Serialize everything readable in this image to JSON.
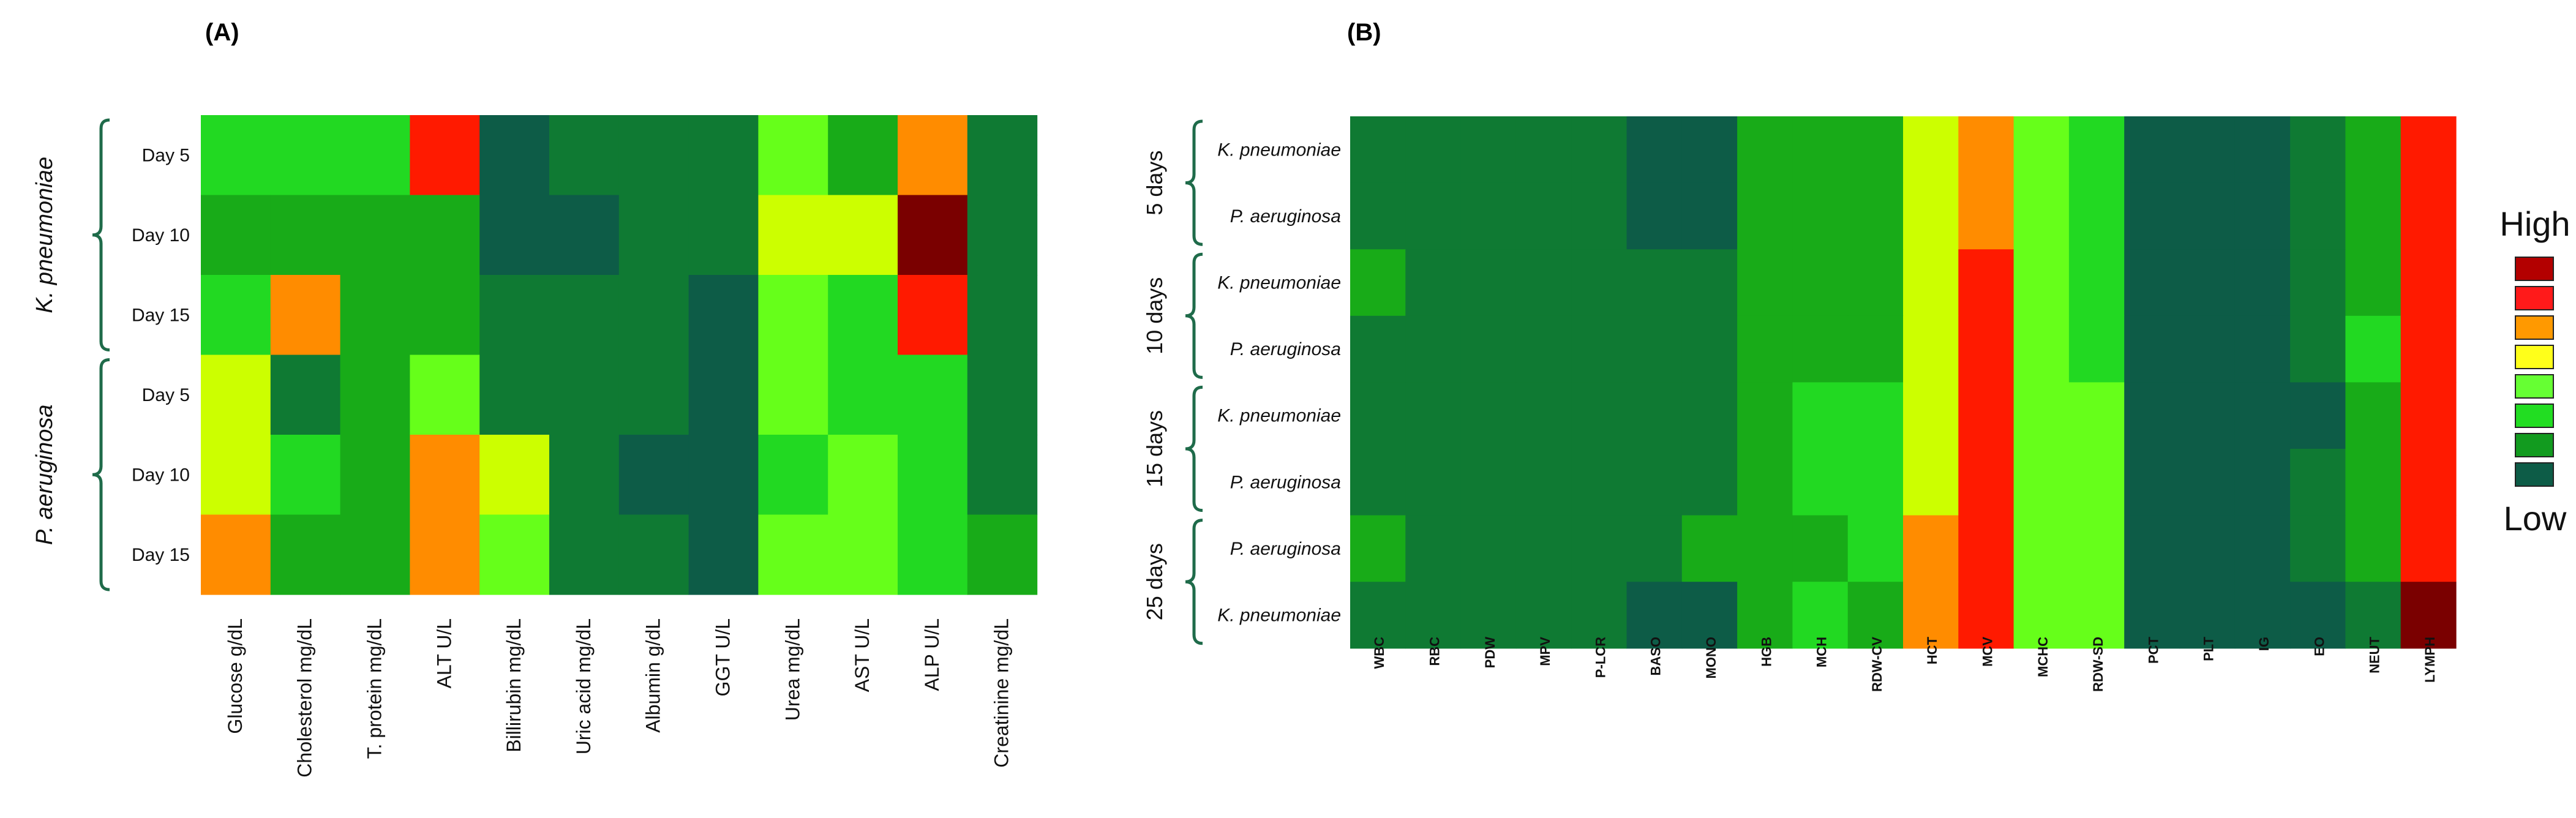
{
  "chart_data": [
    {
      "type": "heatmap",
      "panel_label": "(A)",
      "rows": [
        "Day 5",
        "Day 10",
        "Day 15",
        "Day 5",
        "Day 10",
        "Day 15"
      ],
      "groups": [
        {
          "name": "K. pneumoniae",
          "rows": [
            0,
            1,
            2
          ]
        },
        {
          "name": "P. aeruginosa",
          "rows": [
            3,
            4,
            5
          ]
        }
      ],
      "columns": [
        "Glucose g/dL",
        "Cholesterol mg/dL",
        "T. protein mg/dL",
        "ALT U/L",
        "Billirubin mg/dL",
        "Uric acid mg/dL",
        "Albumin g/dL",
        "GGT U/L",
        "Urea mg/dL",
        "AST U/L",
        "ALP U/L",
        "Creatinine mg/dL"
      ],
      "values": [
        [
          3,
          3,
          3,
          7,
          0,
          1,
          1,
          1,
          4,
          2,
          6,
          1
        ],
        [
          2,
          2,
          2,
          2,
          0,
          0,
          1,
          1,
          5,
          5,
          8,
          1
        ],
        [
          3,
          6,
          2,
          2,
          1,
          1,
          1,
          0,
          4,
          3,
          7,
          1
        ],
        [
          5,
          1,
          2,
          4,
          1,
          1,
          1,
          0,
          4,
          3,
          3,
          1
        ],
        [
          5,
          3,
          2,
          6,
          5,
          1,
          0,
          0,
          3,
          4,
          3,
          1
        ],
        [
          6,
          2,
          2,
          6,
          4,
          1,
          1,
          0,
          4,
          4,
          3,
          2
        ]
      ],
      "value_scale": "0 = Low ... 8 = High"
    },
    {
      "type": "heatmap",
      "panel_label": "(B)",
      "rows": [
        "K. pneumoniae",
        "P. aeruginosa",
        "K. pneumoniae",
        "P. aeruginosa",
        "K. pneumoniae",
        "P. aeruginosa",
        "P. aeruginosa",
        "K. pneumoniae"
      ],
      "groups": [
        {
          "name": "5 days",
          "rows": [
            0,
            1
          ]
        },
        {
          "name": "10 days",
          "rows": [
            2,
            3
          ]
        },
        {
          "name": "15 days",
          "rows": [
            4,
            5
          ]
        },
        {
          "name": "25 days",
          "rows": [
            6,
            7
          ]
        }
      ],
      "columns": [
        "WBC",
        "RBC",
        "PDW",
        "MPV",
        "P-LCR",
        "BASO",
        "MONO",
        "HGB",
        "MCH",
        "RDW-CV",
        "HCT",
        "MCV",
        "MCHC",
        "RDW-SD",
        "PCT",
        "PLT",
        "IG",
        "EO",
        "NEUT",
        "LYMPH"
      ],
      "values": [
        [
          1,
          1,
          1,
          1,
          1,
          0,
          0,
          2,
          2,
          2,
          5,
          6,
          4,
          3,
          0,
          0,
          0,
          1,
          2,
          7
        ],
        [
          1,
          1,
          1,
          1,
          1,
          0,
          0,
          2,
          2,
          2,
          5,
          6,
          4,
          3,
          0,
          0,
          0,
          1,
          2,
          7
        ],
        [
          2,
          1,
          1,
          1,
          1,
          1,
          1,
          2,
          2,
          2,
          5,
          7,
          4,
          3,
          0,
          0,
          0,
          1,
          2,
          7
        ],
        [
          1,
          1,
          1,
          1,
          1,
          1,
          1,
          2,
          2,
          2,
          5,
          7,
          4,
          3,
          0,
          0,
          0,
          1,
          3,
          7
        ],
        [
          1,
          1,
          1,
          1,
          1,
          1,
          1,
          2,
          3,
          3,
          5,
          7,
          4,
          4,
          0,
          0,
          0,
          0,
          2,
          7
        ],
        [
          1,
          1,
          1,
          1,
          1,
          1,
          1,
          2,
          3,
          3,
          5,
          7,
          4,
          4,
          0,
          0,
          0,
          1,
          2,
          7
        ],
        [
          2,
          1,
          1,
          1,
          1,
          1,
          2,
          2,
          2,
          3,
          6,
          7,
          4,
          4,
          0,
          0,
          0,
          1,
          2,
          7
        ],
        [
          1,
          1,
          1,
          1,
          1,
          0,
          0,
          2,
          3,
          2,
          6,
          7,
          4,
          4,
          0,
          0,
          0,
          0,
          1,
          8
        ]
      ],
      "value_scale": "0 = Low ... 8 = High"
    }
  ],
  "legend": {
    "high_label": "High",
    "low_label": "Low",
    "swatches": [
      "#b30000",
      "#ff1a1a",
      "#ff9900",
      "#ffff1a",
      "#66ff33",
      "#22dd22",
      "#129b1f",
      "#0d5c47"
    ]
  },
  "palette": [
    "#0d5c47",
    "#0f7a33",
    "#18ab18",
    "#22d922",
    "#66ff1a",
    "#ccff00",
    "#ff8c00",
    "#ff1a00",
    "#7a0000"
  ]
}
